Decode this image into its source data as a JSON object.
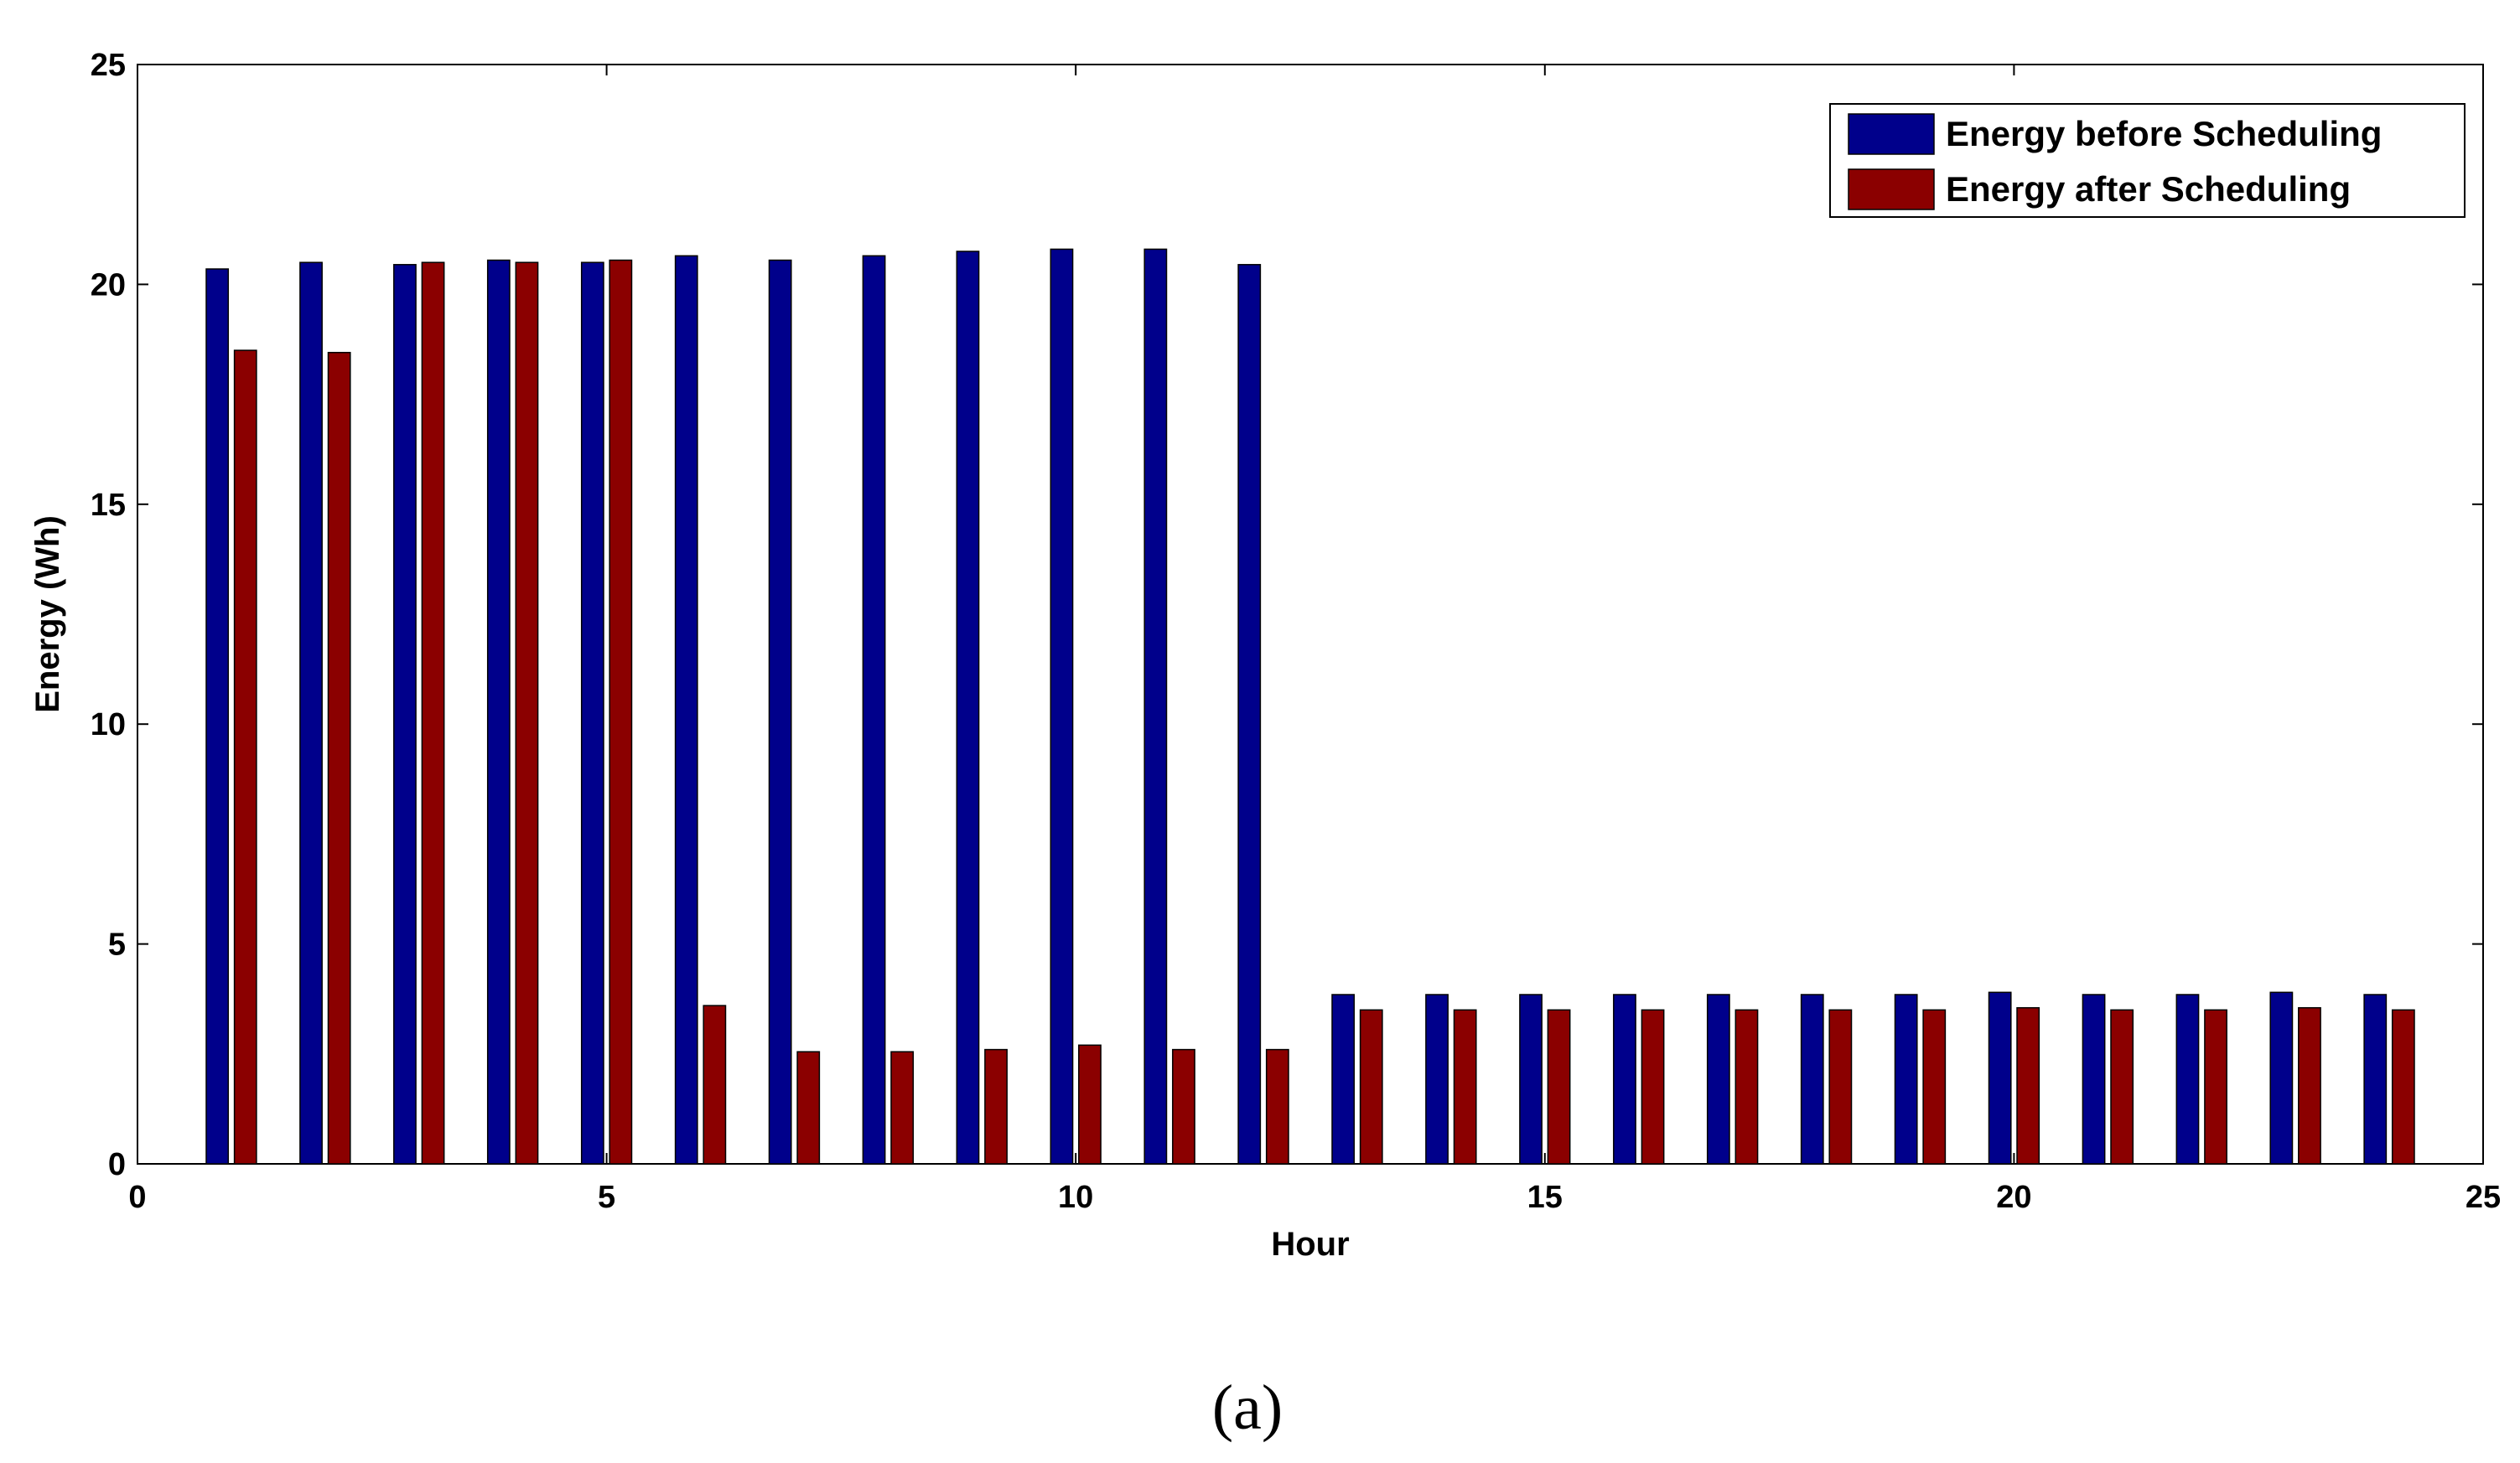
{
  "chart_data": {
    "type": "bar",
    "title": "",
    "xlabel": "Hour",
    "ylabel": "Energy (Wh)",
    "xlim": [
      0,
      25
    ],
    "ylim": [
      0,
      25
    ],
    "xticks": [
      0,
      5,
      10,
      15,
      20,
      25
    ],
    "yticks": [
      0,
      5,
      10,
      15,
      20,
      25
    ],
    "grid": false,
    "legend_position": "top-right",
    "categories": [
      1,
      2,
      3,
      4,
      5,
      6,
      7,
      8,
      9,
      10,
      11,
      12,
      13,
      14,
      15,
      16,
      17,
      18,
      19,
      20,
      21,
      22,
      23,
      24
    ],
    "series": [
      {
        "name": "Energy before Scheduling",
        "color": "#00008B",
        "values": [
          20.35,
          20.5,
          20.45,
          20.55,
          20.5,
          20.65,
          20.55,
          20.65,
          20.75,
          20.8,
          20.8,
          20.45,
          3.85,
          3.85,
          3.85,
          3.85,
          3.85,
          3.85,
          3.85,
          3.9,
          3.85,
          3.85,
          3.9,
          3.85
        ]
      },
      {
        "name": "Energy after Scheduling",
        "color": "#8B0000",
        "values": [
          18.5,
          18.45,
          20.5,
          20.5,
          20.55,
          3.6,
          2.55,
          2.55,
          2.6,
          2.7,
          2.6,
          2.6,
          3.5,
          3.5,
          3.5,
          3.5,
          3.5,
          3.5,
          3.5,
          3.55,
          3.5,
          3.5,
          3.55,
          3.5
        ]
      }
    ]
  },
  "caption": "(a)"
}
